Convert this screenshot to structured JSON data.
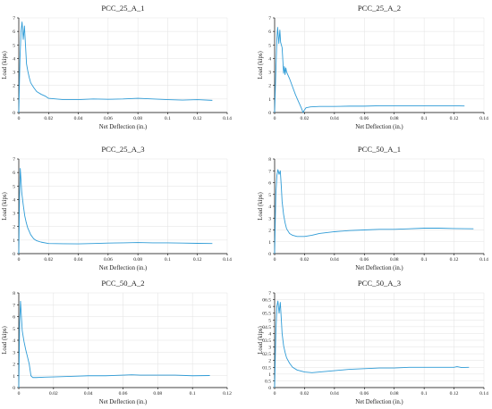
{
  "figure": {
    "line_color": "#2E9BD6",
    "axis_color": "#000000",
    "grid_color": "#E2E2E2"
  },
  "chart_data": [
    {
      "type": "line",
      "title": "PCC_25_A_1",
      "xlabel": "Net Deflection (in.)",
      "ylabel": "Load (kips)",
      "xlim": [
        0,
        0.14
      ],
      "ylim": [
        0,
        7
      ],
      "xticks": [
        0,
        0.02,
        0.04,
        0.06,
        0.08,
        0.1,
        0.12,
        0.14
      ],
      "yticks": [
        0,
        1,
        2,
        3,
        4,
        5,
        6,
        7
      ],
      "grid": true,
      "series": [
        {
          "x": [
            0.0,
            0.0008,
            0.0015,
            0.0022,
            0.003,
            0.0038,
            0.0045,
            0.0052,
            0.006,
            0.007,
            0.008,
            0.01,
            0.012,
            0.015,
            0.018,
            0.02,
            0.025,
            0.03,
            0.04,
            0.05,
            0.06,
            0.07,
            0.08,
            0.09,
            0.1,
            0.11,
            0.12,
            0.13
          ],
          "y": [
            0.0,
            4.0,
            6.0,
            6.7,
            5.4,
            6.4,
            5.0,
            3.6,
            3.1,
            2.6,
            2.2,
            1.85,
            1.55,
            1.35,
            1.2,
            1.05,
            1.0,
            0.95,
            0.95,
            1.0,
            0.98,
            1.0,
            1.05,
            1.0,
            0.95,
            0.92,
            0.95,
            0.9
          ]
        }
      ]
    },
    {
      "type": "line",
      "title": "PCC_25_A_2",
      "xlabel": "Net Deflection (in.)",
      "ylabel": "Load (kips)",
      "xlim": [
        0,
        0.14
      ],
      "ylim": [
        0,
        7
      ],
      "xticks": [
        0,
        0.02,
        0.04,
        0.06,
        0.08,
        0.1,
        0.12,
        0.14
      ],
      "yticks": [
        0,
        1,
        2,
        3,
        4,
        5,
        6,
        7
      ],
      "grid": true,
      "series": [
        {
          "x": [
            0.0,
            0.0008,
            0.0015,
            0.002,
            0.0028,
            0.0035,
            0.004,
            0.005,
            0.006,
            0.0065,
            0.007,
            0.0075,
            0.008,
            0.01,
            0.012,
            0.014,
            0.016,
            0.018,
            0.019,
            0.02,
            0.021,
            0.024,
            0.03,
            0.04,
            0.05,
            0.06,
            0.07,
            0.08,
            0.09,
            0.1,
            0.11,
            0.12,
            0.127
          ],
          "y": [
            0.0,
            3.0,
            5.4,
            6.3,
            5.1,
            6.1,
            5.2,
            4.8,
            2.9,
            3.4,
            2.8,
            3.3,
            3.0,
            2.5,
            1.9,
            1.3,
            0.8,
            0.3,
            0.0,
            0.2,
            0.35,
            0.42,
            0.45,
            0.45,
            0.47,
            0.47,
            0.5,
            0.5,
            0.5,
            0.5,
            0.5,
            0.5,
            0.48
          ]
        }
      ]
    },
    {
      "type": "line",
      "title": "PCC_25_A_3",
      "xlabel": "Net Deflection (in.)",
      "ylabel": "Load (kips)",
      "xlim": [
        0,
        0.14
      ],
      "ylim": [
        0,
        7
      ],
      "xticks": [
        0,
        0.02,
        0.04,
        0.06,
        0.08,
        0.1,
        0.12,
        0.14
      ],
      "yticks": [
        0,
        1,
        2,
        3,
        4,
        5,
        6,
        7
      ],
      "grid": true,
      "series": [
        {
          "x": [
            0.0,
            0.0005,
            0.001,
            0.0015,
            0.002,
            0.003,
            0.004,
            0.005,
            0.006,
            0.008,
            0.01,
            0.012,
            0.015,
            0.02,
            0.03,
            0.04,
            0.05,
            0.06,
            0.07,
            0.08,
            0.09,
            0.1,
            0.11,
            0.12,
            0.13
          ],
          "y": [
            0.0,
            4.2,
            6.3,
            5.4,
            4.5,
            3.6,
            2.8,
            2.3,
            1.9,
            1.4,
            1.1,
            0.95,
            0.85,
            0.75,
            0.73,
            0.72,
            0.75,
            0.78,
            0.8,
            0.82,
            0.8,
            0.8,
            0.78,
            0.76,
            0.75
          ]
        }
      ]
    },
    {
      "type": "line",
      "title": "PCC_50_A_1",
      "xlabel": "Net Deflection (in.)",
      "ylabel": "Load (kips)",
      "xlim": [
        0,
        0.14
      ],
      "ylim": [
        0,
        8
      ],
      "xticks": [
        0,
        0.02,
        0.04,
        0.06,
        0.08,
        0.1,
        0.12,
        0.14
      ],
      "yticks": [
        0,
        1,
        2,
        3,
        4,
        5,
        6,
        7,
        8
      ],
      "grid": true,
      "series": [
        {
          "x": [
            0.0,
            0.0008,
            0.0015,
            0.0022,
            0.003,
            0.0038,
            0.0045,
            0.005,
            0.006,
            0.007,
            0.008,
            0.01,
            0.012,
            0.015,
            0.02,
            0.025,
            0.03,
            0.04,
            0.05,
            0.06,
            0.07,
            0.08,
            0.09,
            0.1,
            0.11,
            0.12,
            0.133
          ],
          "y": [
            0.0,
            5.0,
            6.6,
            7.1,
            6.7,
            7.0,
            5.6,
            4.4,
            3.3,
            2.6,
            2.1,
            1.7,
            1.55,
            1.45,
            1.45,
            1.55,
            1.7,
            1.85,
            1.95,
            2.0,
            2.05,
            2.05,
            2.1,
            2.15,
            2.15,
            2.12,
            2.1
          ]
        }
      ]
    },
    {
      "type": "line",
      "title": "PCC_50_A_2",
      "xlabel": "Net Deflection (in.)",
      "ylabel": "Load (kips)",
      "xlim": [
        0,
        0.12
      ],
      "ylim": [
        0,
        8
      ],
      "xticks": [
        0,
        0.02,
        0.04,
        0.06,
        0.08,
        0.1,
        0.12
      ],
      "yticks": [
        0,
        1,
        2,
        3,
        4,
        5,
        6,
        7,
        8
      ],
      "grid": true,
      "series": [
        {
          "x": [
            0.0,
            0.0005,
            0.001,
            0.0015,
            0.002,
            0.003,
            0.004,
            0.005,
            0.006,
            0.007,
            0.008,
            0.01,
            0.015,
            0.02,
            0.03,
            0.04,
            0.05,
            0.06,
            0.065,
            0.07,
            0.08,
            0.09,
            0.1,
            0.11
          ],
          "y": [
            0.0,
            5.5,
            7.3,
            6.0,
            4.8,
            3.9,
            3.2,
            2.6,
            2.0,
            1.0,
            0.85,
            0.85,
            0.88,
            0.9,
            0.95,
            1.0,
            1.0,
            1.05,
            1.08,
            1.05,
            1.05,
            1.05,
            1.0,
            1.02
          ]
        }
      ]
    },
    {
      "type": "line",
      "title": "PCC_50_A_3",
      "xlabel": "Net Deflection (in.)",
      "ylabel": "Load (kips)",
      "xlim": [
        0,
        0.14
      ],
      "ylim": [
        0,
        7
      ],
      "xticks": [
        0,
        0.02,
        0.04,
        0.06,
        0.08,
        0.1,
        0.12,
        0.14
      ],
      "yticks": [
        0,
        0.5,
        1,
        1.5,
        2,
        2.5,
        3,
        3.5,
        4,
        4.5,
        5,
        5.5,
        6,
        6.5,
        7
      ],
      "grid": true,
      "series": [
        {
          "x": [
            0.0,
            0.0008,
            0.0015,
            0.0022,
            0.003,
            0.0038,
            0.0045,
            0.005,
            0.006,
            0.007,
            0.008,
            0.01,
            0.012,
            0.015,
            0.02,
            0.025,
            0.03,
            0.04,
            0.05,
            0.06,
            0.07,
            0.08,
            0.09,
            0.1,
            0.11,
            0.12,
            0.122,
            0.125,
            0.13
          ],
          "y": [
            0.0,
            4.0,
            6.0,
            6.4,
            5.5,
            6.3,
            5.0,
            4.0,
            3.1,
            2.6,
            2.2,
            1.8,
            1.5,
            1.3,
            1.15,
            1.1,
            1.15,
            1.25,
            1.35,
            1.4,
            1.45,
            1.45,
            1.5,
            1.5,
            1.5,
            1.5,
            1.55,
            1.48,
            1.5
          ]
        }
      ]
    }
  ]
}
